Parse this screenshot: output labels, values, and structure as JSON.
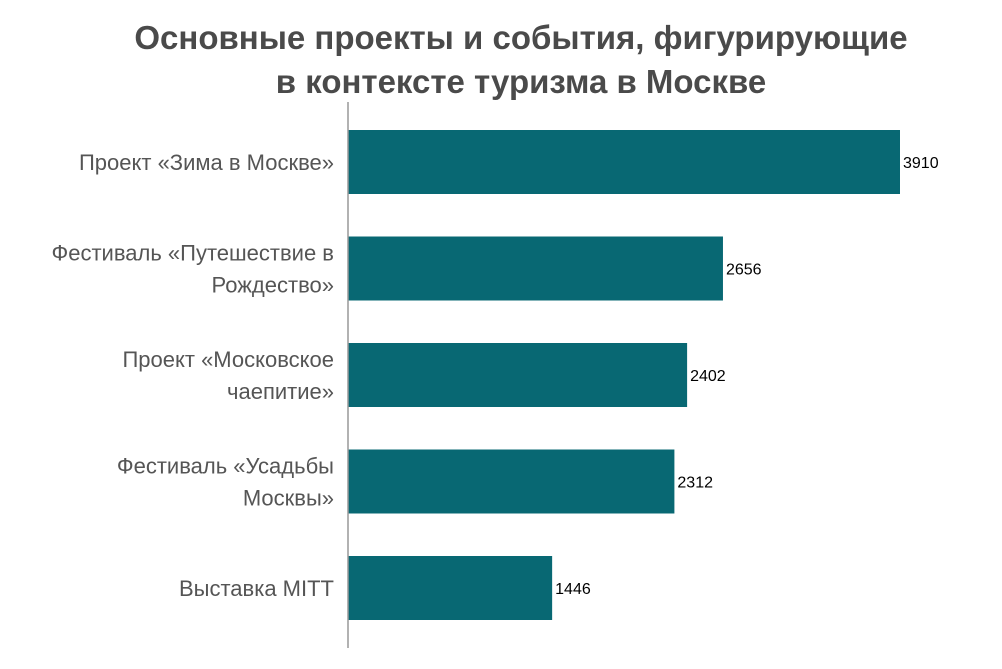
{
  "chart_data": {
    "type": "bar",
    "orientation": "horizontal",
    "title": "Основные проекты и события, фигурирующие в контексте туризма в Москве",
    "title_lines": [
      "Основные проекты и события, фигурирующие",
      "в контексте туризма в Москве"
    ],
    "categories": [
      [
        "Проект «Зима в Москве»"
      ],
      [
        "Фестиваль «Путешествие в",
        "Рождество»"
      ],
      [
        "Проект «Московское",
        "чаепитие»"
      ],
      [
        "Фестиваль «Усадьбы",
        "Москвы»"
      ],
      [
        "Выставка MITT"
      ]
    ],
    "values": [
      3910,
      2656,
      2402,
      2312,
      1446
    ],
    "data_labels": [
      "3910",
      "2656",
      "2402",
      "2312",
      "1446"
    ],
    "xlim": [
      0,
      3910
    ],
    "grid": false,
    "legend": "none",
    "colors": {
      "bar": "#086873",
      "title": "#4a4a4a",
      "category_label": "#555555",
      "value_label": "#000000",
      "axis": "#999999"
    }
  }
}
